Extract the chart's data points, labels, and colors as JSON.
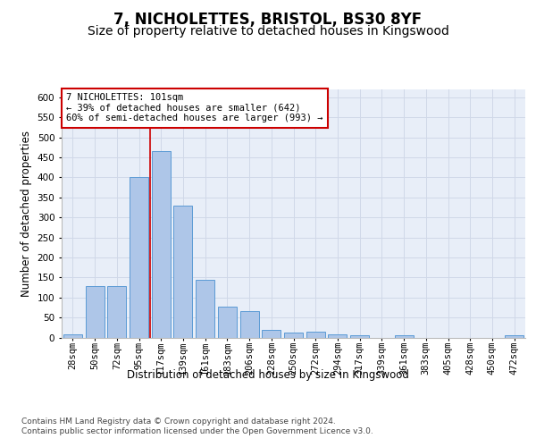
{
  "title": "7, NICHOLETTES, BRISTOL, BS30 8YF",
  "subtitle": "Size of property relative to detached houses in Kingswood",
  "xlabel": "Distribution of detached houses by size in Kingswood",
  "ylabel": "Number of detached properties",
  "categories": [
    "28sqm",
    "50sqm",
    "72sqm",
    "95sqm",
    "117sqm",
    "139sqm",
    "161sqm",
    "183sqm",
    "206sqm",
    "228sqm",
    "250sqm",
    "272sqm",
    "294sqm",
    "317sqm",
    "339sqm",
    "361sqm",
    "383sqm",
    "405sqm",
    "428sqm",
    "450sqm",
    "472sqm"
  ],
  "values": [
    8,
    128,
    128,
    400,
    465,
    330,
    145,
    78,
    65,
    20,
    12,
    15,
    8,
    5,
    0,
    5,
    0,
    0,
    0,
    0,
    5
  ],
  "bar_color": "#aec6e8",
  "bar_edge_color": "#5b9bd5",
  "annotation_line1": "7 NICHOLETTES: 101sqm",
  "annotation_line2": "← 39% of detached houses are smaller (642)",
  "annotation_line3": "60% of semi-detached houses are larger (993) →",
  "annotation_box_color": "#ffffff",
  "annotation_box_edge_color": "#cc0000",
  "vline_color": "#cc0000",
  "vline_x_index": 3.5,
  "ylim": [
    0,
    620
  ],
  "yticks": [
    0,
    50,
    100,
    150,
    200,
    250,
    300,
    350,
    400,
    450,
    500,
    550,
    600
  ],
  "footer_text": "Contains HM Land Registry data © Crown copyright and database right 2024.\nContains public sector information licensed under the Open Government Licence v3.0.",
  "title_fontsize": 12,
  "subtitle_fontsize": 10,
  "axis_label_fontsize": 8.5,
  "tick_fontsize": 7.5,
  "annotation_fontsize": 7.5,
  "footer_fontsize": 6.5,
  "background_color": "#ffffff",
  "grid_color": "#d0d8e8",
  "axes_bg_color": "#e8eef8"
}
